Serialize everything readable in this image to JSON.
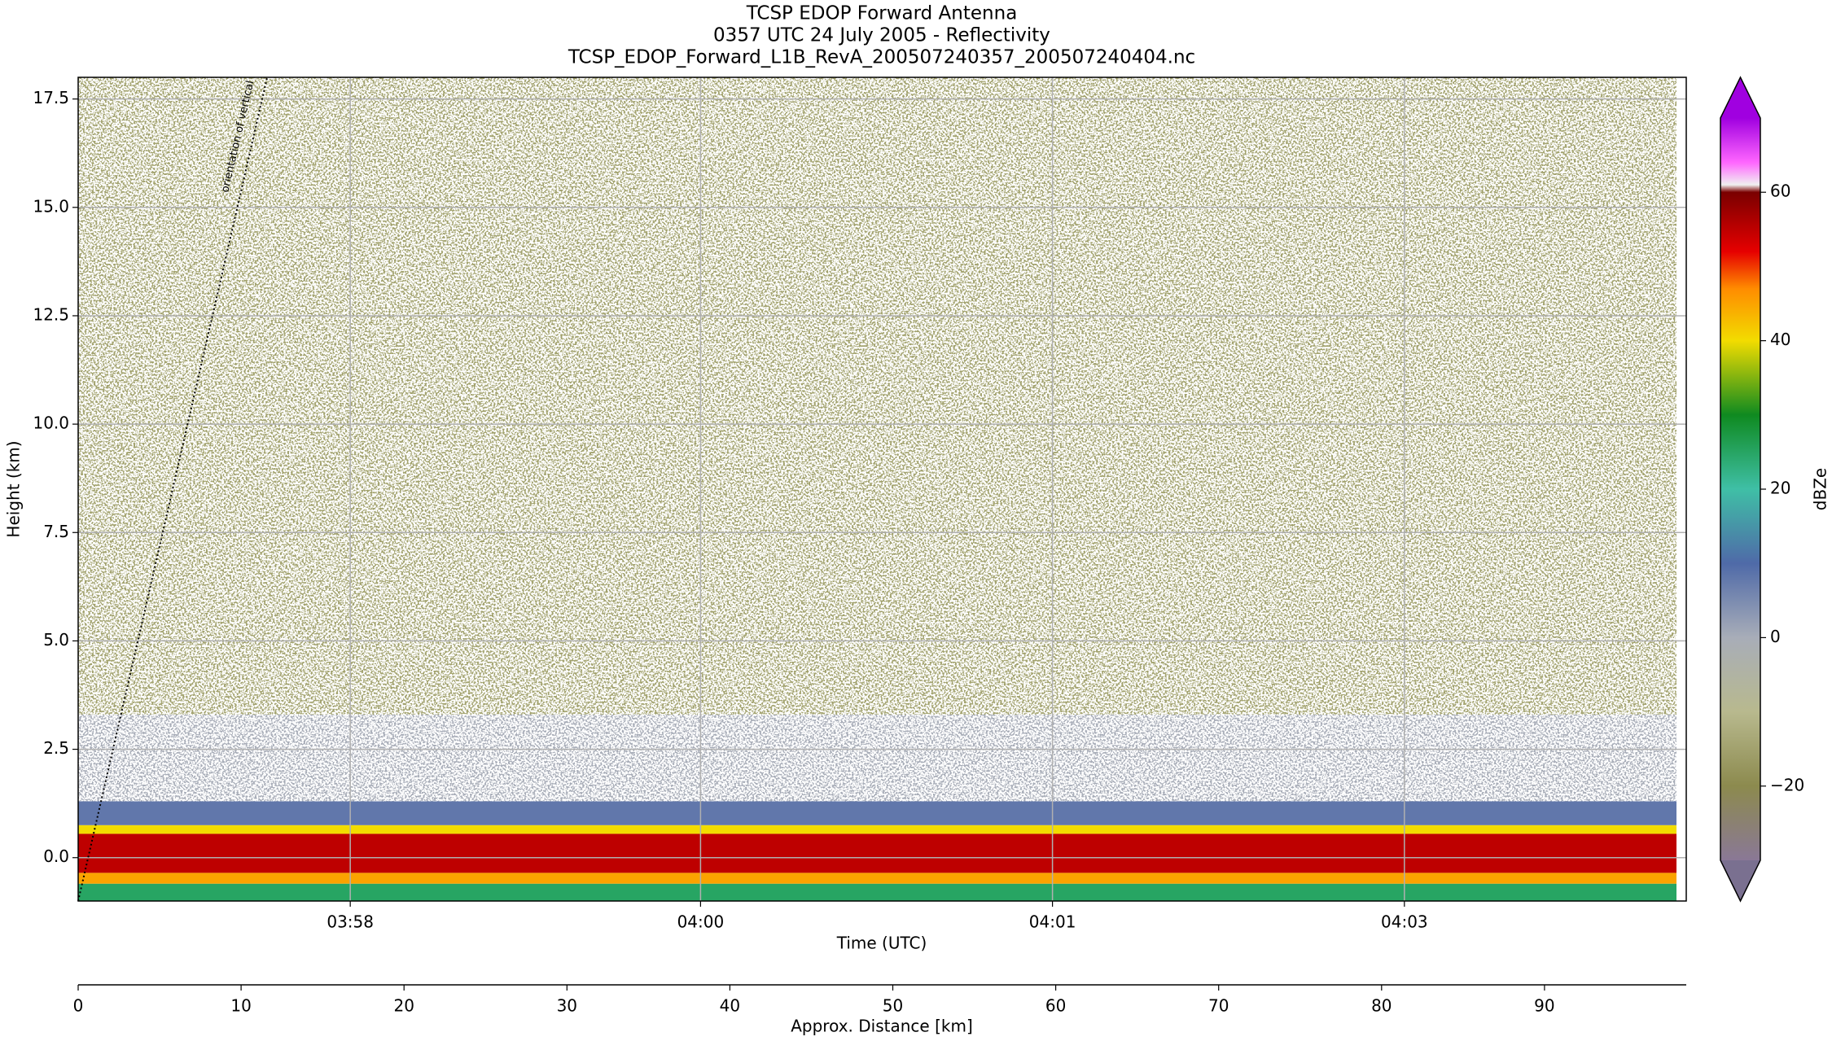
{
  "chart_data": {
    "type": "heatmap",
    "title": [
      "TCSP EDOP Forward Antenna",
      "0357 UTC 24 July 2005 - Reflectivity",
      "TCSP_EDOP_Forward_L1B_RevA_200507240357_200507240404.nc"
    ],
    "xlabel": "Time (UTC)",
    "x2label": "Approx. Distance [km]",
    "ylabel": "Height (km)",
    "colorbar_label": "dBZe",
    "xlim": [
      0,
      98.7
    ],
    "ylim": [
      -1,
      18
    ],
    "clim": [
      -30,
      70
    ],
    "xticks": [
      {
        "value": 16.7,
        "label": "03:58"
      },
      {
        "value": 38.2,
        "label": "04:00"
      },
      {
        "value": 59.8,
        "label": "04:01"
      },
      {
        "value": 81.4,
        "label": "04:03"
      }
    ],
    "x2ticks": [
      0,
      10,
      20,
      30,
      40,
      50,
      60,
      70,
      80,
      90
    ],
    "yticks": [
      {
        "value": 0,
        "label": "0.0"
      },
      {
        "value": 2.5,
        "label": "2.5"
      },
      {
        "value": 5,
        "label": "5.0"
      },
      {
        "value": 7.5,
        "label": "7.5"
      },
      {
        "value": 10,
        "label": "10.0"
      },
      {
        "value": 12.5,
        "label": "12.5"
      },
      {
        "value": 15,
        "label": "15.0"
      },
      {
        "value": 17.5,
        "label": "17.5"
      }
    ],
    "cticks": [
      {
        "value": -20,
        "label": "−20"
      },
      0,
      20,
      40,
      60
    ],
    "grid": true,
    "colormap": [
      {
        "value": -30,
        "color": "#8a7896"
      },
      {
        "value": -20,
        "color": "#8c8a4e"
      },
      {
        "value": -10,
        "color": "#b8b98e"
      },
      {
        "value": 0,
        "color": "#a8adb8"
      },
      {
        "value": 10,
        "color": "#4f6aa8"
      },
      {
        "value": 20,
        "color": "#3fbfa6"
      },
      {
        "value": 30,
        "color": "#0f8a20"
      },
      {
        "value": 40,
        "color": "#f2dc00"
      },
      {
        "value": 47,
        "color": "#ff8c00"
      },
      {
        "value": 52,
        "color": "#e60000"
      },
      {
        "value": 60,
        "color": "#7a0000"
      },
      {
        "value": 61,
        "color": "#f0f0f0"
      },
      {
        "value": 64,
        "color": "#ff66ff"
      },
      {
        "value": 70,
        "color": "#a000e0"
      }
    ],
    "under_color": "#7a7090",
    "over_color": "#a000e0",
    "layers": [
      {
        "bottom": -1.0,
        "top": -0.6,
        "dbz": 25
      },
      {
        "bottom": -0.6,
        "top": -0.35,
        "dbz": 45
      },
      {
        "bottom": -0.35,
        "top": 0.55,
        "dbz": 55
      },
      {
        "bottom": 0.55,
        "top": 0.75,
        "dbz": 40
      },
      {
        "bottom": 0.75,
        "top": 1.3,
        "dbz": 8
      },
      {
        "bottom": 1.3,
        "top": 3.3,
        "dbz": 0
      },
      {
        "bottom": 3.3,
        "top": 18,
        "dbz": -15
      }
    ],
    "annotation": "orientation of vertical"
  }
}
